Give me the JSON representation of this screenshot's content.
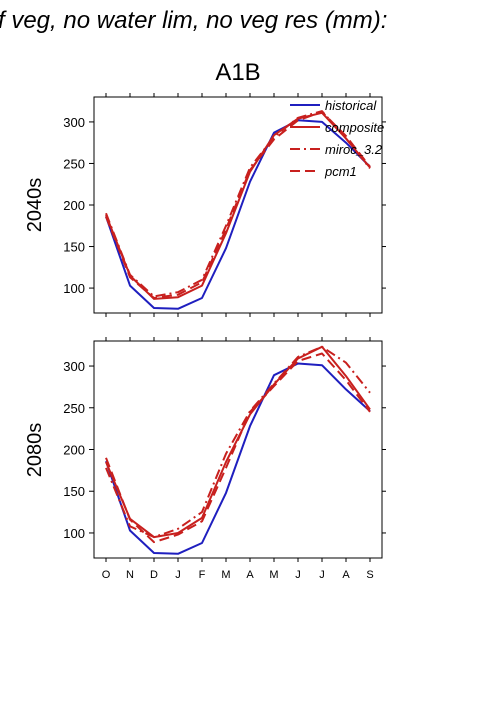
{
  "figure": {
    "title": "f veg, no water lim, no veg res (mm):",
    "scenario": "A1B"
  },
  "legend": [
    "historical",
    "composite",
    "miroc_3.2",
    "pcm1"
  ],
  "colors": {
    "historical": "#1f1fbf",
    "models": "#c8201e",
    "axis": "#000000"
  },
  "chart_data": [
    {
      "type": "line",
      "row_label": "2040s",
      "categories": [
        "O",
        "N",
        "D",
        "J",
        "F",
        "M",
        "A",
        "M",
        "J",
        "J",
        "A",
        "S"
      ],
      "ylim": [
        70,
        330
      ],
      "yticks": [
        100,
        150,
        200,
        250,
        300
      ],
      "series": [
        {
          "name": "historical",
          "style": "solid",
          "values": [
            186,
            103,
            76,
            75,
            88,
            148,
            228,
            287,
            302,
            300,
            275,
            246
          ]
        },
        {
          "name": "composite",
          "style": "solid",
          "values": [
            188,
            115,
            87,
            89,
            103,
            166,
            240,
            284,
            304,
            311,
            280,
            245
          ]
        },
        {
          "name": "miroc_3.2",
          "style": "dashdot",
          "values": [
            190,
            116,
            90,
            95,
            110,
            175,
            245,
            282,
            305,
            313,
            280,
            244
          ]
        },
        {
          "name": "pcm1",
          "style": "dash",
          "values": [
            186,
            113,
            88,
            92,
            107,
            171,
            242,
            279,
            302,
            312,
            283,
            246
          ]
        }
      ]
    },
    {
      "type": "line",
      "row_label": "2080s",
      "categories": [
        "O",
        "N",
        "D",
        "J",
        "F",
        "M",
        "A",
        "M",
        "J",
        "J",
        "A",
        "S"
      ],
      "ylim": [
        70,
        330
      ],
      "yticks": [
        100,
        150,
        200,
        250,
        300
      ],
      "series": [
        {
          "name": "historical",
          "style": "solid",
          "values": [
            186,
            103,
            76,
            75,
            88,
            148,
            228,
            289,
            303,
            301,
            272,
            246
          ]
        },
        {
          "name": "composite",
          "style": "solid",
          "values": [
            185,
            117,
            95,
            100,
            118,
            185,
            242,
            278,
            309,
            323,
            288,
            248
          ]
        },
        {
          "name": "miroc_3.2",
          "style": "dashdot",
          "values": [
            178,
            108,
            95,
            105,
            125,
            195,
            246,
            279,
            311,
            323,
            304,
            268
          ]
        },
        {
          "name": "pcm1",
          "style": "dash",
          "values": [
            190,
            116,
            89,
            98,
            114,
            178,
            245,
            276,
            306,
            315,
            283,
            245
          ]
        }
      ]
    }
  ]
}
